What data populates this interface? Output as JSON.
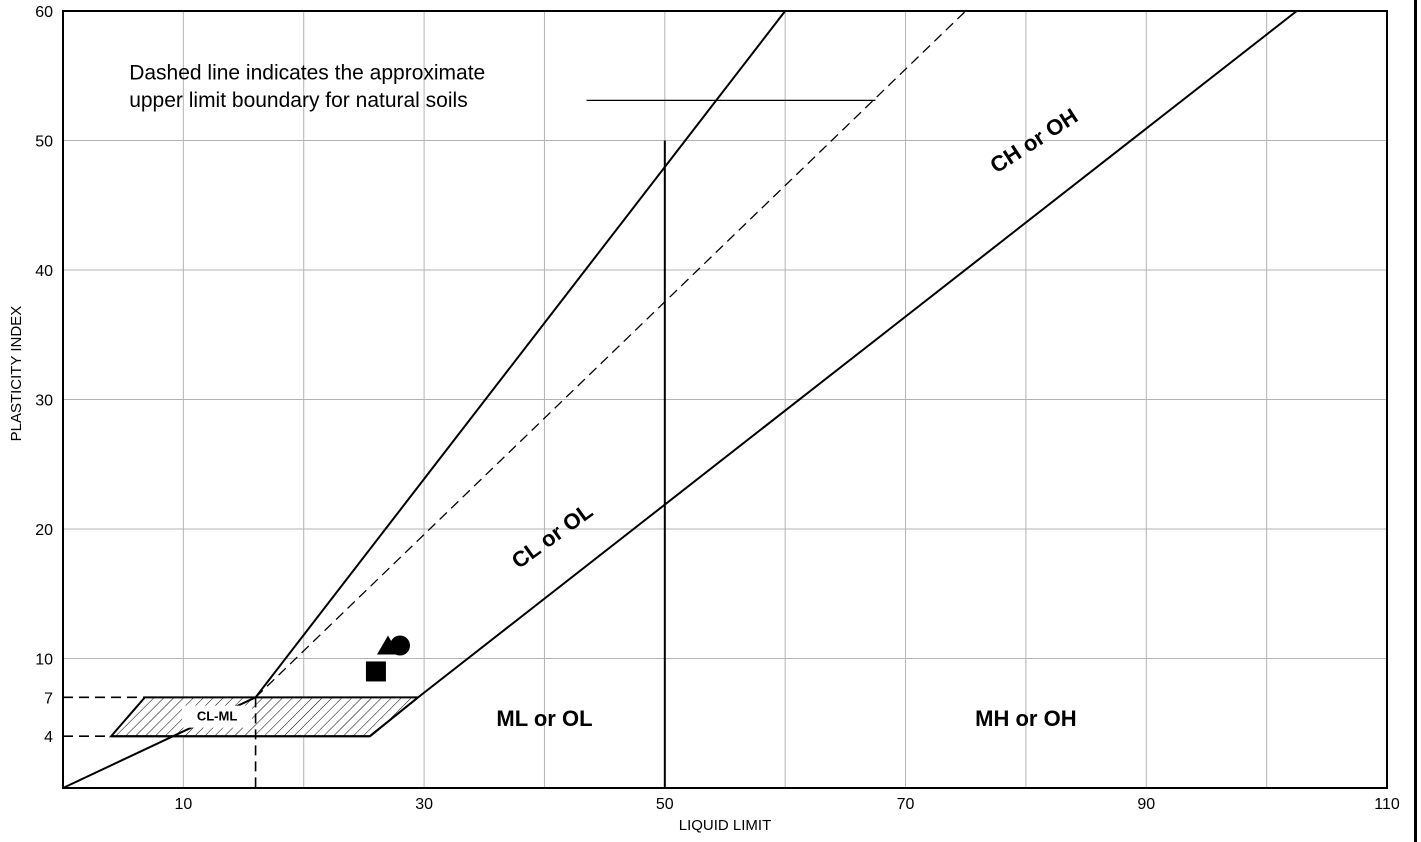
{
  "chart_data": {
    "type": "scatter",
    "title": "",
    "xlabel": "LIQUID LIMIT",
    "ylabel": "PLASTICITY INDEX",
    "xlim": [
      0,
      110
    ],
    "ylim": [
      0,
      60
    ],
    "grid": true,
    "x_ticks": [
      10,
      30,
      50,
      70,
      90,
      110
    ],
    "y_ticks": [
      4,
      7,
      10,
      20,
      30,
      40,
      50,
      60
    ],
    "lines": [
      {
        "name": "U-line",
        "style": "solid",
        "points": [
          [
            0,
            0
          ],
          [
            16,
            7
          ],
          [
            60,
            60
          ]
        ]
      },
      {
        "name": "upper limit natural soils",
        "style": "dashed",
        "points": [
          [
            16,
            7
          ],
          [
            75,
            60
          ]
        ]
      },
      {
        "name": "A-line",
        "style": "solid",
        "points": [
          [
            4,
            4
          ],
          [
            25.5,
            4
          ],
          [
            29.5,
            7
          ],
          [
            102.5,
            60
          ]
        ]
      },
      {
        "name": "LL 50 divider",
        "style": "solid",
        "points": [
          [
            50,
            0
          ],
          [
            50,
            50
          ]
        ]
      }
    ],
    "annotations": [
      {
        "text": "Dashed line indicates the approximate",
        "x": 5.5,
        "y": 54.7
      },
      {
        "text": "upper limit boundary for natural soils",
        "x": 5.5,
        "y": 52.6
      }
    ],
    "zones": [
      {
        "text": "CH or OH",
        "x": 81,
        "y": 49.5,
        "rotation": -33
      },
      {
        "text": "CL or OL",
        "x": 41,
        "y": 19,
        "rotation": -36
      },
      {
        "text": "ML or OL",
        "x": 40,
        "y": 4.8
      },
      {
        "text": "MH or OH",
        "x": 80,
        "y": 4.8
      },
      {
        "text": "CL-ML",
        "x": 12.8,
        "y": 5.2
      }
    ],
    "points": [
      {
        "marker": "circle",
        "x": 28,
        "y": 11
      },
      {
        "marker": "triangle",
        "x": 27,
        "y": 11
      },
      {
        "marker": "square",
        "x": 26,
        "y": 9
      }
    ],
    "colors": {
      "line": "#000000",
      "grid": "#b3b3b3",
      "background": "#ffffff"
    }
  }
}
